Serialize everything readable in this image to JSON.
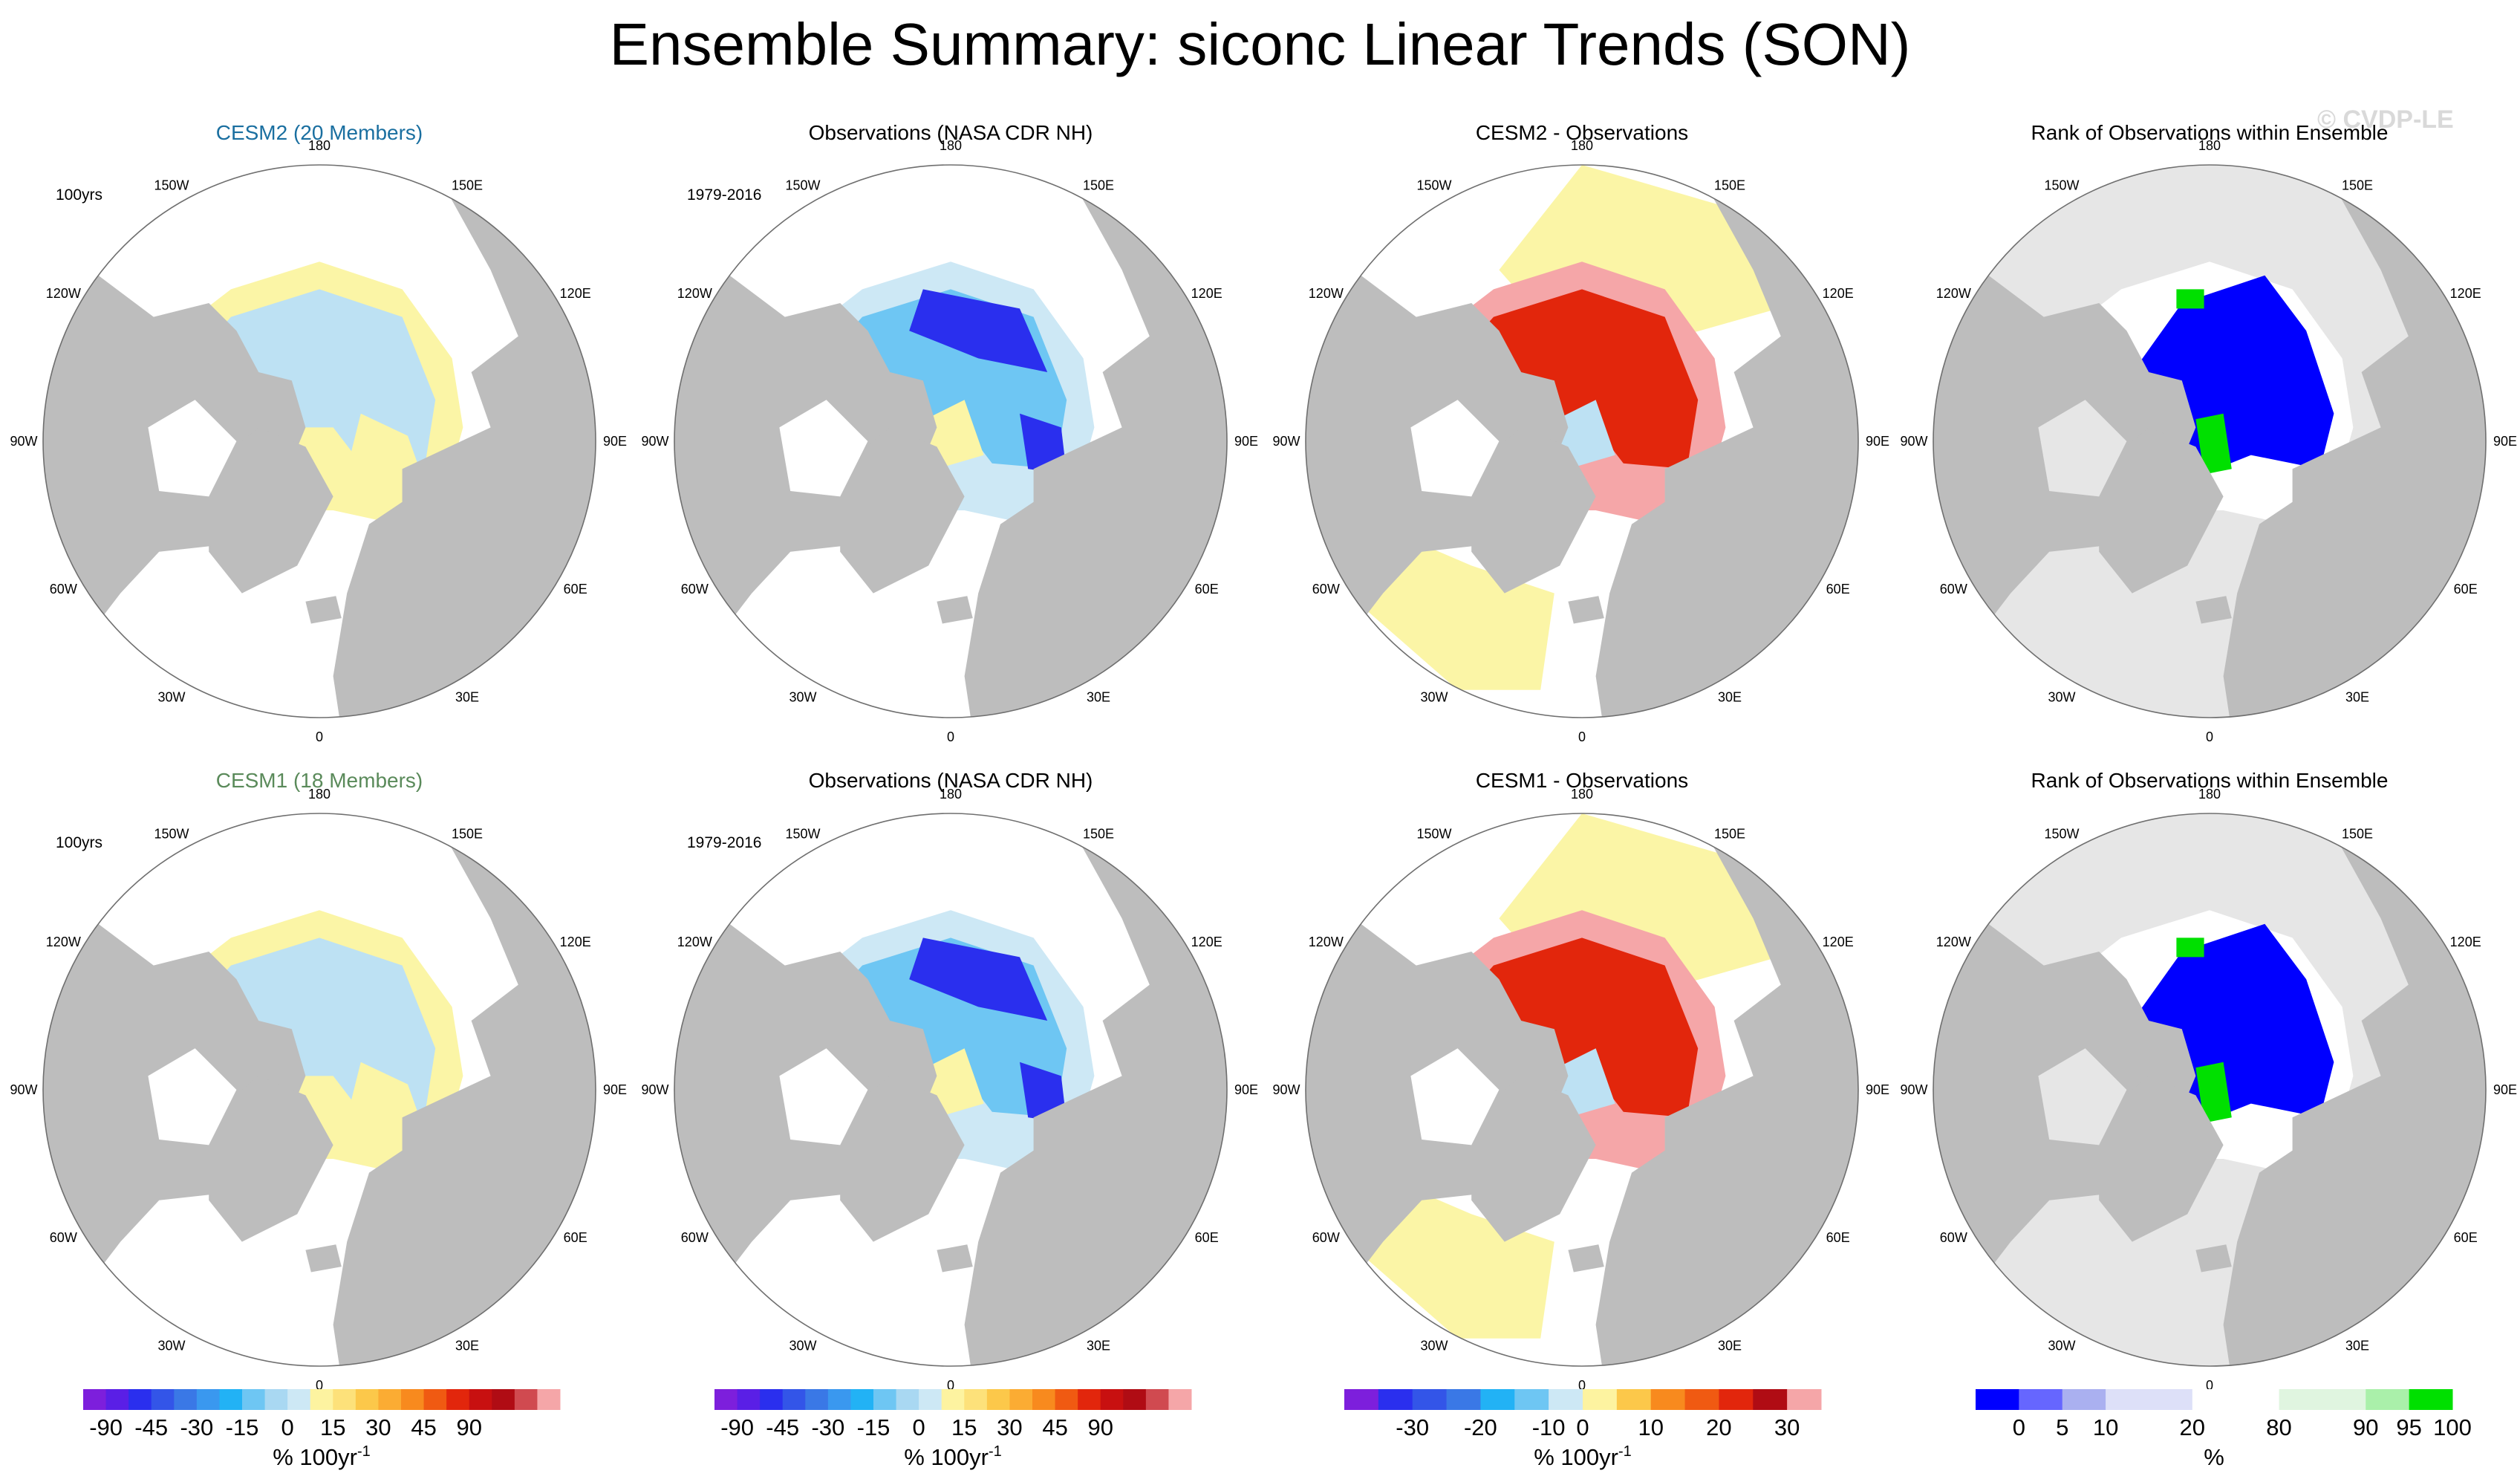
{
  "title": "Ensemble Summary: siconc Linear Trends (SON)",
  "watermark": "© CVDP-LE",
  "colors": {
    "land": "#bdbdbd",
    "ocean": "#ffffff",
    "pale_yellow": "#fbf5a6",
    "light_blue": "#bde1f3",
    "cesm2_title": "#1a6fa0",
    "cesm1_title": "#5a8a5a",
    "rank_ocean": "#e6e6e6",
    "rank_blue": "#0000ff",
    "rank_green": "#00e000"
  },
  "lon_labels": [
    "180",
    "150E",
    "120E",
    "90E",
    "60E",
    "30E",
    "0",
    "30W",
    "60W",
    "90W",
    "120W",
    "150W"
  ],
  "rows": [
    {
      "panels": [
        {
          "title": "CESM2 (20 Members)",
          "title_color": "#1a6fa0",
          "period": "100yrs",
          "style": "ensemble"
        },
        {
          "title": "Observations (NASA CDR NH)",
          "title_color": "#000000",
          "period": "1979-2016",
          "style": "obs"
        },
        {
          "title": "CESM2 - Observations",
          "title_color": "#000000",
          "period": "",
          "style": "diff"
        },
        {
          "title": "Rank of Observations within Ensemble",
          "title_color": "#000000",
          "period": "",
          "style": "rank"
        }
      ]
    },
    {
      "panels": [
        {
          "title": "CESM1 (18 Members)",
          "title_color": "#5a8a5a",
          "period": "100yrs",
          "style": "ensemble"
        },
        {
          "title": "Observations (NASA CDR NH)",
          "title_color": "#000000",
          "period": "1979-2016",
          "style": "obs"
        },
        {
          "title": "CESM1 - Observations",
          "title_color": "#000000",
          "period": "",
          "style": "diff"
        },
        {
          "title": "Rank of Observations within Ensemble",
          "title_color": "#000000",
          "period": "",
          "style": "rank"
        }
      ]
    }
  ],
  "colorbars": [
    {
      "colors": [
        "#7d1fdc",
        "#5a1fe6",
        "#2a2fee",
        "#3355e8",
        "#3a78e6",
        "#3a98ef",
        "#22b2f5",
        "#6ec6f3",
        "#a9d8f2",
        "#cde8f5",
        "#fdf3a0",
        "#fde17a",
        "#fcc84a",
        "#fbac33",
        "#f88a1e",
        "#f05a12",
        "#e2260c",
        "#c81010",
        "#b00c14",
        "#d04a50",
        "#f5a6a8"
      ],
      "tick_labels": [
        "-90",
        "-45",
        "-30",
        "-15",
        "0",
        "15",
        "30",
        "45",
        "90"
      ],
      "tick_positions": [
        1,
        3,
        5,
        7,
        9,
        11,
        13,
        15,
        17
      ],
      "unit": "% 100yr",
      "unit_sup": "-1"
    },
    {
      "colors": [
        "#7d1fdc",
        "#5a1fe6",
        "#2a2fee",
        "#3355e8",
        "#3a78e6",
        "#3a98ef",
        "#22b2f5",
        "#6ec6f3",
        "#a9d8f2",
        "#cde8f5",
        "#fdf3a0",
        "#fde17a",
        "#fcc84a",
        "#fbac33",
        "#f88a1e",
        "#f05a12",
        "#e2260c",
        "#c81010",
        "#b00c14",
        "#d04a50",
        "#f5a6a8"
      ],
      "tick_labels": [
        "-90",
        "-45",
        "-30",
        "-15",
        "0",
        "15",
        "30",
        "45",
        "90"
      ],
      "tick_positions": [
        1,
        3,
        5,
        7,
        9,
        11,
        13,
        15,
        17
      ],
      "unit": "% 100yr",
      "unit_sup": "-1"
    },
    {
      "colors": [
        "#7d1fdc",
        "#2a2fee",
        "#3355e8",
        "#3a78e6",
        "#22b2f5",
        "#6ec6f3",
        "#cde8f5",
        "#fdf3a0",
        "#fcc84a",
        "#f88a1e",
        "#f05a12",
        "#e2260c",
        "#b00c14",
        "#f5a6a8"
      ],
      "tick_labels": [
        "-30",
        "-20",
        "-10",
        "0",
        "10",
        "20",
        "30"
      ],
      "tick_positions": [
        2,
        4,
        6,
        7,
        9,
        11,
        13
      ],
      "unit": "% 100yr",
      "unit_sup": "-1"
    },
    {
      "colors": [
        "#0000ff",
        "#6666ff",
        "#aab0f0",
        "#dde0f8",
        "#dde0f8",
        "#ffffff",
        "#ffffff",
        "#e0f5e0",
        "#e0f5e0",
        "#aaf0aa",
        "#00e000"
      ],
      "tick_labels": [
        "0",
        "5",
        "10",
        "20",
        "80",
        "90",
        "95",
        "100"
      ],
      "tick_positions": [
        1,
        2,
        3,
        5,
        7,
        9,
        10,
        11
      ],
      "unit": "%",
      "unit_sup": ""
    }
  ],
  "chart_data": [
    {
      "type": "heatmap",
      "title": "CESM2 (20 Members)",
      "annotation": "100yrs",
      "variable": "siconc linear trend (SON)",
      "units": "% 100yr-1",
      "colorbar_ticks": [
        -90,
        -45,
        -30,
        -15,
        0,
        15,
        30,
        45,
        90
      ]
    },
    {
      "type": "heatmap",
      "title": "Observations (NASA CDR NH)",
      "annotation": "1979-2016",
      "variable": "siconc linear trend (SON)",
      "units": "% 100yr-1",
      "colorbar_ticks": [
        -90,
        -45,
        -30,
        -15,
        0,
        15,
        30,
        45,
        90
      ]
    },
    {
      "type": "heatmap",
      "title": "CESM2 - Observations",
      "variable": "siconc linear trend difference (SON)",
      "units": "% 100yr-1",
      "colorbar_ticks": [
        -30,
        -20,
        -10,
        0,
        10,
        20,
        30
      ]
    },
    {
      "type": "heatmap",
      "title": "Rank of Observations within Ensemble",
      "units": "%",
      "colorbar_ticks": [
        0,
        5,
        10,
        20,
        80,
        90,
        95,
        100
      ]
    },
    {
      "type": "heatmap",
      "title": "CESM1 (18 Members)",
      "annotation": "100yrs",
      "variable": "siconc linear trend (SON)",
      "units": "% 100yr-1",
      "colorbar_ticks": [
        -90,
        -45,
        -30,
        -15,
        0,
        15,
        30,
        45,
        90
      ]
    },
    {
      "type": "heatmap",
      "title": "Observations (NASA CDR NH)",
      "annotation": "1979-2016",
      "variable": "siconc linear trend (SON)",
      "units": "% 100yr-1",
      "colorbar_ticks": [
        -90,
        -45,
        -30,
        -15,
        0,
        15,
        30,
        45,
        90
      ]
    },
    {
      "type": "heatmap",
      "title": "CESM1 - Observations",
      "variable": "siconc linear trend difference (SON)",
      "units": "% 100yr-1",
      "colorbar_ticks": [
        -30,
        -20,
        -10,
        0,
        10,
        20,
        30
      ]
    },
    {
      "type": "heatmap",
      "title": "Rank of Observations within Ensemble",
      "units": "%",
      "colorbar_ticks": [
        0,
        5,
        10,
        20,
        80,
        90,
        95,
        100
      ]
    }
  ]
}
